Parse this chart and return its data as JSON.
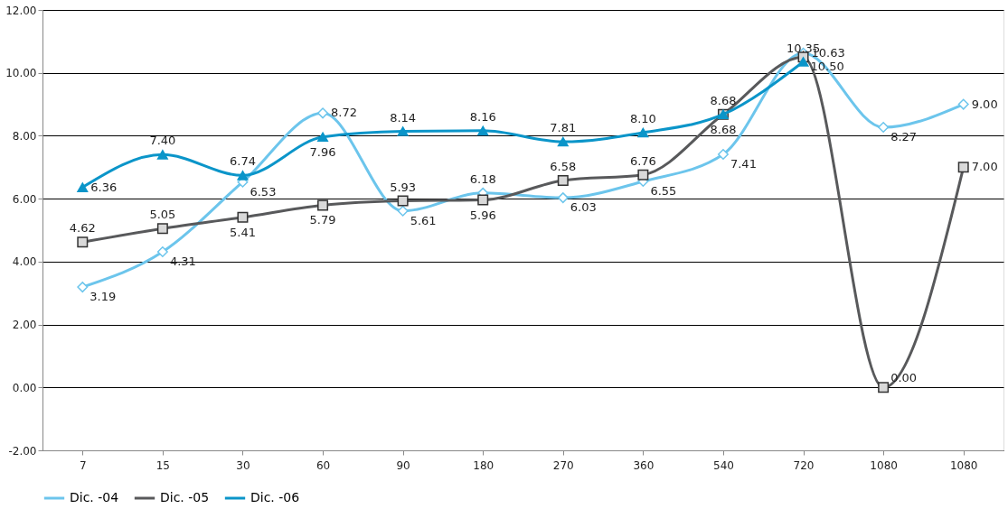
{
  "chart_data": {
    "type": "line",
    "categories": [
      "7",
      "15",
      "30",
      "60",
      "90",
      "180",
      "270",
      "360",
      "540",
      "720",
      "1080",
      "1080"
    ],
    "series": [
      {
        "name": "Dic. -04",
        "color": "#6cc5ec",
        "marker": "diamond",
        "values": [
          3.19,
          4.31,
          6.53,
          8.72,
          5.61,
          6.18,
          6.03,
          6.55,
          7.41,
          10.63,
          8.27,
          9.0
        ],
        "value_labels": [
          "3.19",
          "4.31",
          "6.53",
          "8.72",
          "5.61",
          "6.18",
          "6.03",
          "6.55",
          "7.41",
          "10.63",
          "8.27",
          "9.00"
        ]
      },
      {
        "name": "Dic. -05",
        "color": "#58595b",
        "marker": "square",
        "values": [
          4.62,
          5.05,
          5.41,
          5.79,
          5.93,
          5.96,
          6.58,
          6.76,
          8.68,
          10.5,
          0.0,
          7.0
        ],
        "value_labels": [
          "4.62",
          "5.05",
          "5.41",
          "5.79",
          "5.93",
          "5.96",
          "6.58",
          "6.76",
          "8.68",
          "10.50",
          "0.00",
          "7.00"
        ]
      },
      {
        "name": "Dic. -06",
        "color": "#0b95c9",
        "marker": "triangle",
        "values": [
          6.36,
          7.4,
          6.74,
          7.96,
          8.14,
          8.16,
          7.81,
          8.1,
          8.68,
          10.35,
          null,
          null
        ],
        "value_labels": [
          "6.36",
          "7.40",
          "6.74",
          "7.96",
          "8.14",
          "8.16",
          "7.81",
          "8.10",
          "8.68",
          "10.35",
          null,
          null
        ]
      }
    ],
    "ylim": [
      -2,
      12
    ],
    "yticks": [
      {
        "value": -2,
        "label": "-2.00"
      },
      {
        "value": 0,
        "label": "0.00"
      },
      {
        "value": 2,
        "label": "2.00"
      },
      {
        "value": 4,
        "label": "4.00"
      },
      {
        "value": 6,
        "label": "6.00"
      },
      {
        "value": 8,
        "label": "8.00"
      },
      {
        "value": 10,
        "label": "10.00"
      },
      {
        "value": 12,
        "label": "12.00"
      }
    ],
    "grid": "y",
    "legend": "bottom",
    "line_style": "solid"
  }
}
